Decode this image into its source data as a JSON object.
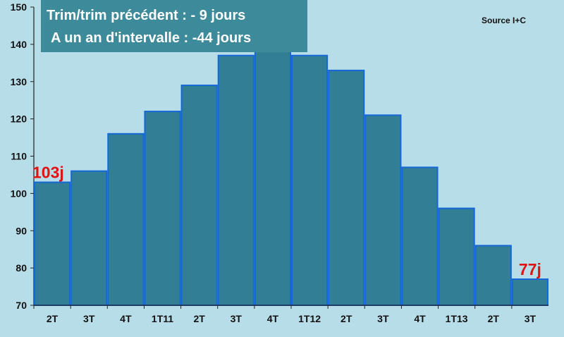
{
  "colors": {
    "background": "#b7dde8",
    "bar_fill": "#327e94",
    "bar_stroke": "#1668d8",
    "axis": "#222222",
    "data_label": "#e01212",
    "title_box": "#3d8a9b",
    "title_text": "#ffffff"
  },
  "header": {
    "line1": "Trim/trim précédent : - 9 jours",
    "line2": "A un an d'intervalle : -44 jours"
  },
  "source": "Source I+C",
  "chart_data": {
    "type": "bar",
    "categories": [
      "2T",
      "3T",
      "4T",
      "1T11",
      "2T",
      "3T",
      "4T",
      "1T12",
      "2T",
      "3T",
      "4T",
      "1T13",
      "2T",
      "3T"
    ],
    "values": [
      103,
      106,
      116,
      122,
      129,
      137,
      140,
      137,
      133,
      121,
      107,
      96,
      86,
      77
    ],
    "ylim": [
      70,
      150
    ],
    "yticks": [
      70,
      80,
      90,
      100,
      110,
      120,
      130,
      140,
      150
    ],
    "ytick_labels": [
      "70",
      "80",
      "90",
      "100",
      "110",
      "120",
      "130",
      "140",
      "150"
    ],
    "xlabel": "",
    "ylabel": "",
    "grid": false,
    "annotations": [
      {
        "index": 0,
        "text": "103j"
      },
      {
        "index": 13,
        "text": "77j"
      }
    ]
  }
}
